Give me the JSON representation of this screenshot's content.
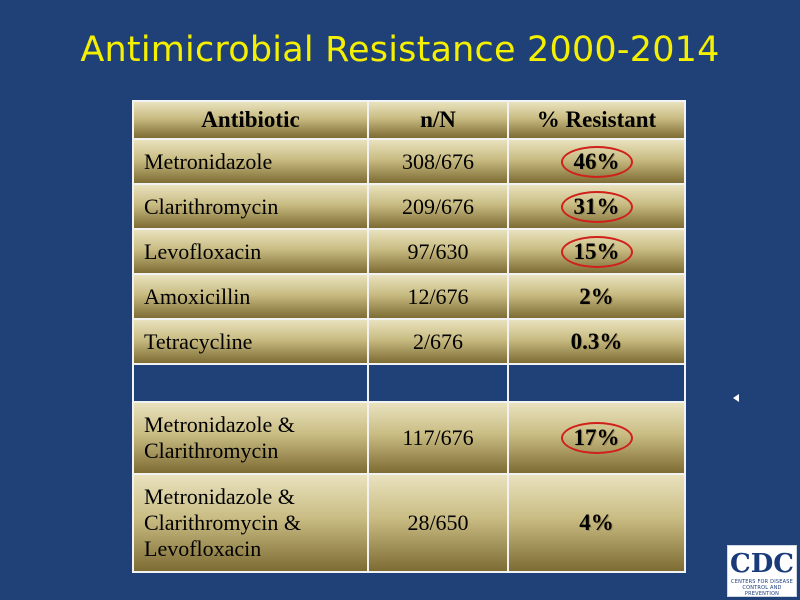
{
  "slide": {
    "title": "Antimicrobial Resistance 2000-2014"
  },
  "table": {
    "headers": [
      "Antibiotic",
      "n/N",
      "% Resistant"
    ],
    "rows": [
      {
        "antibiotic": "Metronidazole",
        "n_n": "308/676",
        "pct": "46%",
        "circled": true
      },
      {
        "antibiotic": "Clarithromycin",
        "n_n": "209/676",
        "pct": "31%",
        "circled": true
      },
      {
        "antibiotic": "Levofloxacin",
        "n_n": "97/630",
        "pct": "15%",
        "circled": true
      },
      {
        "antibiotic": "Amoxicillin",
        "n_n": "12/676",
        "pct": "2%",
        "circled": false
      },
      {
        "antibiotic": "Tetracycline",
        "n_n": "2/676",
        "pct": "0.3%",
        "circled": false
      },
      {
        "antibiotic": "",
        "n_n": "",
        "pct": "",
        "circled": false
      },
      {
        "antibiotic": "Metronidazole & Clarithromycin",
        "n_n": "117/676",
        "pct": "17%",
        "circled": true
      },
      {
        "antibiotic": "Metronidazole & Clarithromycin & Levofloxacin",
        "n_n": "28/650",
        "pct": "4%",
        "circled": false
      }
    ]
  },
  "logo": {
    "main": "CDC",
    "line1": "Centers for Disease",
    "line2": "Control and Prevention"
  },
  "colors": {
    "background": "#1f4178",
    "title": "#f4f000",
    "circle": "#d0201a"
  }
}
